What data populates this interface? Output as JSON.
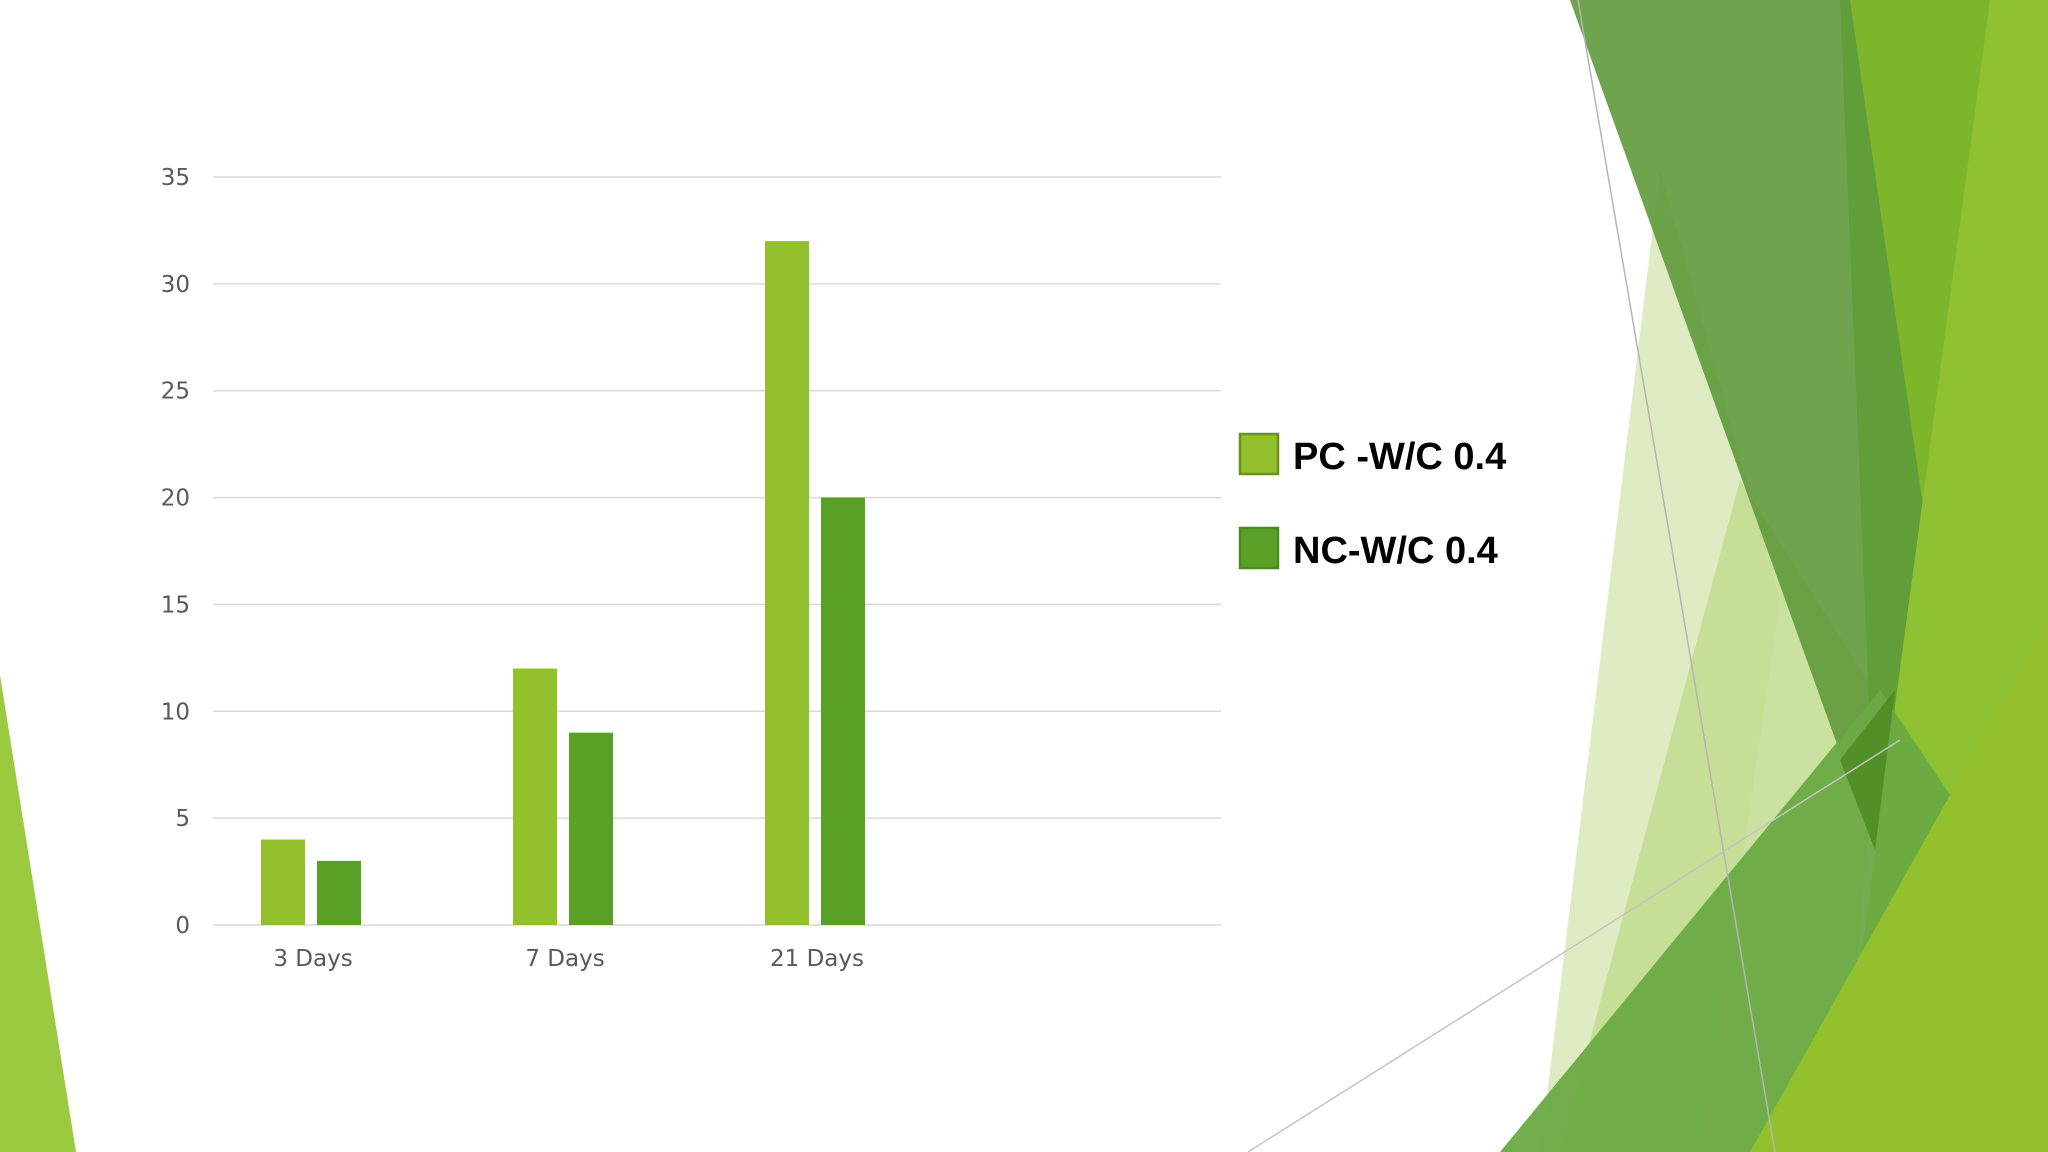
{
  "chart_data": {
    "type": "bar",
    "categories": [
      "3 Days",
      "7 Days",
      "21 Days"
    ],
    "series": [
      {
        "name": "PC -W/C 0.4",
        "values": [
          4,
          12,
          32
        ],
        "color": "#92c02c",
        "border": "#6a9219"
      },
      {
        "name": "NC-W/C 0.4",
        "values": [
          3,
          9,
          20
        ],
        "color": "#58a026",
        "border": "#4a8a1e"
      }
    ],
    "y_ticks": [
      "0",
      "5",
      "10",
      "15",
      "20",
      "25",
      "30",
      "35"
    ],
    "ylim": [
      0,
      35
    ],
    "grid": true,
    "legend_position": "right",
    "title": "",
    "xlabel": "",
    "ylabel": ""
  },
  "theme": {
    "background": "#ffffff",
    "gridline": "#d9d9d9",
    "tick_text": "#595959",
    "accent_light": "#9bc93f",
    "accent_dark": "#5e9a3a"
  }
}
